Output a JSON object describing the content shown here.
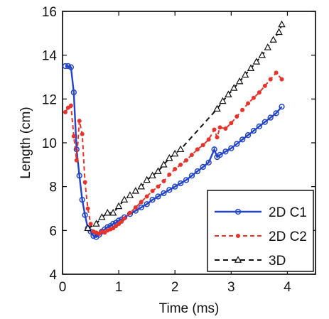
{
  "chart_data": {
    "type": "line",
    "xlabel": "Time (ms)",
    "ylabel": "Length (cm)",
    "xlim": [
      0,
      4.5
    ],
    "ylim": [
      4,
      16
    ],
    "xticks": [
      0,
      1,
      2,
      3,
      4
    ],
    "yticks": [
      4,
      6,
      8,
      10,
      12,
      14,
      16
    ],
    "grid": false,
    "legend_position": "bottom-right",
    "series": [
      {
        "name": "2D C1",
        "color": "#2244cc",
        "line_style": "solid",
        "marker": "circle",
        "x": [
          0.05,
          0.1,
          0.15,
          0.2,
          0.25,
          0.3,
          0.35,
          0.4,
          0.45,
          0.5,
          0.55,
          0.6,
          0.65,
          0.7,
          0.75,
          0.8,
          0.85,
          0.9,
          0.95,
          1.0,
          1.05,
          1.1,
          1.2,
          1.3,
          1.4,
          1.5,
          1.6,
          1.7,
          1.8,
          1.9,
          2.0,
          2.1,
          2.2,
          2.3,
          2.4,
          2.5,
          2.6,
          2.7,
          2.75,
          2.8,
          2.9,
          3.0,
          3.1,
          3.2,
          3.3,
          3.4,
          3.5,
          3.6,
          3.7,
          3.8,
          3.9
        ],
        "y": [
          13.5,
          13.5,
          13.45,
          12.3,
          9.7,
          8.5,
          7.4,
          6.7,
          6.1,
          5.95,
          5.75,
          5.7,
          5.8,
          5.95,
          6.05,
          6.15,
          6.2,
          6.3,
          6.35,
          6.45,
          6.5,
          6.6,
          6.75,
          6.9,
          7.05,
          7.2,
          7.4,
          7.55,
          7.7,
          7.85,
          8.0,
          8.15,
          8.3,
          8.5,
          8.7,
          8.9,
          9.1,
          9.7,
          9.35,
          9.45,
          9.6,
          9.75,
          9.95,
          10.15,
          10.35,
          10.55,
          10.75,
          10.95,
          11.15,
          11.35,
          11.65
        ]
      },
      {
        "name": "2D C2",
        "color": "#e8332a",
        "line_style": "dashed",
        "marker": "dot",
        "x": [
          0.05,
          0.1,
          0.15,
          0.2,
          0.25,
          0.3,
          0.35,
          0.4,
          0.45,
          0.5,
          0.55,
          0.6,
          0.65,
          0.7,
          0.75,
          0.8,
          0.85,
          0.9,
          0.95,
          1.0,
          1.05,
          1.1,
          1.2,
          1.3,
          1.4,
          1.5,
          1.6,
          1.7,
          1.8,
          1.9,
          2.0,
          2.1,
          2.2,
          2.3,
          2.4,
          2.5,
          2.6,
          2.7,
          2.75,
          2.8,
          2.9,
          3.0,
          3.1,
          3.2,
          3.3,
          3.4,
          3.5,
          3.6,
          3.7,
          3.8,
          3.9
        ],
        "y": [
          11.4,
          11.6,
          11.7,
          10.3,
          9.2,
          11.0,
          10.4,
          8.2,
          7.0,
          6.3,
          5.95,
          5.9,
          5.85,
          5.95,
          5.9,
          6.0,
          6.05,
          6.1,
          6.2,
          6.3,
          6.4,
          6.55,
          6.8,
          7.05,
          7.3,
          7.55,
          7.8,
          8.0,
          8.25,
          8.55,
          8.8,
          9.0,
          9.2,
          9.45,
          9.7,
          9.9,
          10.15,
          10.6,
          10.25,
          10.7,
          10.65,
          10.9,
          11.2,
          11.5,
          11.8,
          12.05,
          12.3,
          12.6,
          12.9,
          13.2,
          12.9
        ]
      },
      {
        "name": "3D",
        "color": "#111111",
        "line_style": "dashed",
        "marker": "triangle",
        "x": [
          0.45,
          0.6,
          0.7,
          0.8,
          0.9,
          1.0,
          1.1,
          1.2,
          1.3,
          1.4,
          1.5,
          1.6,
          1.7,
          1.8,
          1.9,
          2.0,
          2.1,
          2.75,
          2.85,
          2.95,
          3.05,
          3.15,
          3.25,
          3.35,
          3.45,
          3.55,
          3.65,
          3.75,
          3.85,
          3.9
        ],
        "y": [
          6.1,
          6.3,
          6.6,
          6.8,
          6.8,
          7.1,
          7.4,
          7.6,
          7.8,
          8.0,
          8.3,
          8.5,
          8.7,
          9.0,
          9.3,
          9.5,
          9.7,
          11.55,
          11.9,
          12.2,
          12.5,
          12.8,
          13.1,
          13.4,
          13.7,
          14.0,
          14.35,
          14.7,
          15.05,
          15.4
        ]
      }
    ]
  }
}
